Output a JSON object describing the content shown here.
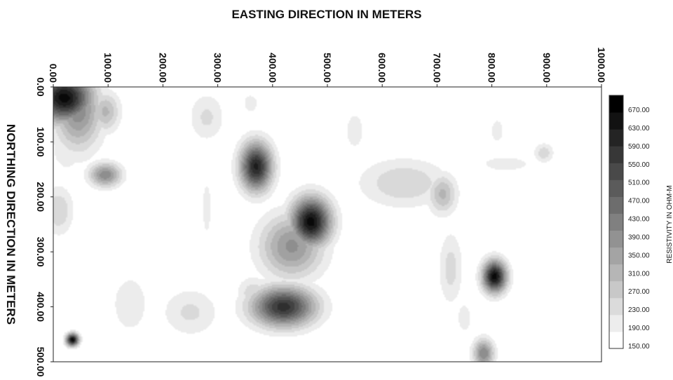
{
  "chart_data": {
    "type": "heatmap",
    "title": "",
    "xlabel": "EASTING DIRECTION IN METERS",
    "ylabel": "NORTHING DIRECTION IN METERS",
    "x_ticks": [
      "0.00",
      "100.00",
      "200.00",
      "300.00",
      "400.00",
      "500.00",
      "600.00",
      "700.00",
      "800.00",
      "900.00",
      "1000.00"
    ],
    "y_ticks": [
      "0.00",
      "100.00",
      "200.00",
      "300.00",
      "400.00",
      "500.00"
    ],
    "xlim": [
      0,
      1000
    ],
    "ylim": [
      0,
      500
    ],
    "y_inverted": true,
    "colorbar": {
      "label": "RESISTIVITY IN OHM-M",
      "ticks": [
        "150.00",
        "190.00",
        "230.00",
        "270.00",
        "310.00",
        "350.00",
        "390.00",
        "430.00",
        "470.00",
        "510.00",
        "550.00",
        "590.00",
        "630.00",
        "670.00"
      ],
      "range": [
        150,
        690
      ],
      "colormap": [
        "#ffffff",
        "#000000"
      ]
    },
    "background_value": 150,
    "anomalies": [
      {
        "x": 20,
        "y": 20,
        "sx": 35,
        "sy": 30,
        "value": 690
      },
      {
        "x": 45,
        "y": 40,
        "sx": 30,
        "sy": 50,
        "value": 420
      },
      {
        "x": 25,
        "y": 110,
        "sx": 20,
        "sy": 30,
        "value": 230
      },
      {
        "x": 95,
        "y": 45,
        "sx": 18,
        "sy": 25,
        "value": 320
      },
      {
        "x": 95,
        "y": 160,
        "sx": 20,
        "sy": 15,
        "value": 420
      },
      {
        "x": 10,
        "y": 225,
        "sx": 18,
        "sy": 30,
        "value": 270
      },
      {
        "x": 140,
        "y": 50,
        "sx": 20,
        "sy": 30,
        "value": 190
      },
      {
        "x": 280,
        "y": 55,
        "sx": 22,
        "sy": 30,
        "value": 240
      },
      {
        "x": 360,
        "y": 30,
        "sx": 12,
        "sy": 15,
        "value": 210
      },
      {
        "x": 370,
        "y": 145,
        "sx": 20,
        "sy": 30,
        "value": 640
      },
      {
        "x": 470,
        "y": 245,
        "sx": 25,
        "sy": 30,
        "value": 690
      },
      {
        "x": 435,
        "y": 290,
        "sx": 40,
        "sy": 40,
        "value": 400
      },
      {
        "x": 420,
        "y": 400,
        "sx": 40,
        "sy": 25,
        "value": 610
      },
      {
        "x": 365,
        "y": 375,
        "sx": 20,
        "sy": 20,
        "value": 260
      },
      {
        "x": 250,
        "y": 410,
        "sx": 35,
        "sy": 30,
        "value": 240
      },
      {
        "x": 140,
        "y": 395,
        "sx": 25,
        "sy": 40,
        "value": 220
      },
      {
        "x": 35,
        "y": 460,
        "sx": 8,
        "sy": 8,
        "value": 690
      },
      {
        "x": 60,
        "y": 490,
        "sx": 30,
        "sy": 15,
        "value": 180
      },
      {
        "x": 550,
        "y": 80,
        "sx": 20,
        "sy": 40,
        "value": 200
      },
      {
        "x": 640,
        "y": 175,
        "sx": 55,
        "sy": 30,
        "value": 270
      },
      {
        "x": 710,
        "y": 195,
        "sx": 18,
        "sy": 25,
        "value": 320
      },
      {
        "x": 725,
        "y": 330,
        "sx": 15,
        "sy": 45,
        "value": 250
      },
      {
        "x": 805,
        "y": 345,
        "sx": 15,
        "sy": 20,
        "value": 690
      },
      {
        "x": 785,
        "y": 485,
        "sx": 13,
        "sy": 18,
        "value": 430
      },
      {
        "x": 750,
        "y": 420,
        "sx": 10,
        "sy": 20,
        "value": 220
      },
      {
        "x": 825,
        "y": 140,
        "sx": 40,
        "sy": 12,
        "value": 210
      },
      {
        "x": 895,
        "y": 120,
        "sx": 12,
        "sy": 12,
        "value": 260
      },
      {
        "x": 810,
        "y": 80,
        "sx": 8,
        "sy": 15,
        "value": 230
      },
      {
        "x": 280,
        "y": 220,
        "sx": 10,
        "sy": 60,
        "value": 200
      },
      {
        "x": 560,
        "y": 395,
        "sx": 12,
        "sy": 10,
        "value": 190
      },
      {
        "x": 390,
        "y": 480,
        "sx": 25,
        "sy": 15,
        "value": 180
      }
    ]
  }
}
